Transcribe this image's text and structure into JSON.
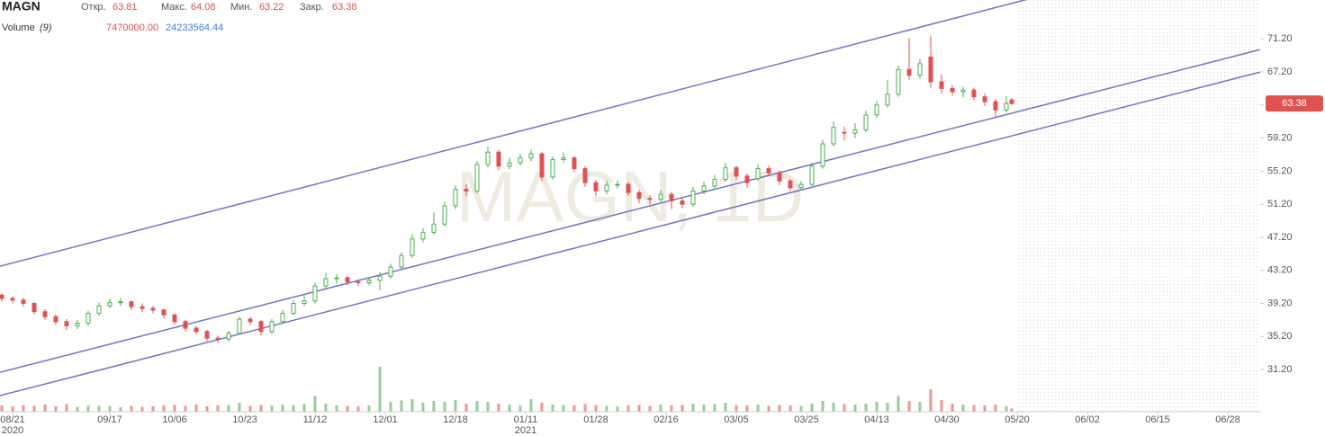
{
  "chart_data": {
    "type": "candlestick",
    "header": {
      "symbol": "MAGN",
      "open_label": "Откр.",
      "high_label": "Макс.",
      "low_label": "Мин.",
      "close_label": "Закр.",
      "volume_name": "Volume",
      "volume_period": "(9)",
      "volume_value": "7470000.00",
      "volume_ma": "24233564.44"
    },
    "watermark": "MAGN, 1D",
    "x": [
      0,
      2,
      4,
      6,
      8,
      10,
      12,
      14,
      16,
      18,
      20,
      22,
      24,
      26,
      28,
      30,
      32,
      34,
      36,
      38,
      40,
      42,
      44,
      46,
      48,
      50,
      52,
      54,
      56,
      58,
      60,
      62,
      64,
      66,
      68,
      70,
      72,
      74,
      76,
      78,
      80,
      82,
      84,
      86,
      88,
      90,
      92,
      94,
      96,
      98,
      100,
      102,
      104,
      106,
      108,
      110,
      112,
      114,
      116,
      118,
      120,
      122,
      124,
      126,
      128,
      130,
      132,
      134,
      136,
      138,
      140,
      142,
      144,
      146,
      148,
      150,
      152,
      154,
      156,
      158,
      160,
      162,
      164,
      166,
      168,
      170,
      172,
      174,
      176,
      178,
      180,
      182,
      184,
      186,
      187
    ],
    "open": [
      40.2,
      39.8,
      39.6,
      39.2,
      38.2,
      37.6,
      37.0,
      36.5,
      36.8,
      38.0,
      38.9,
      39.3,
      39.4,
      38.8,
      38.6,
      38.4,
      37.8,
      37.0,
      36.2,
      35.8,
      35.0,
      34.9,
      35.6,
      37.3,
      37.0,
      35.8,
      37.0,
      38.0,
      39.2,
      39.5,
      41.3,
      42.2,
      42.3,
      41.8,
      41.7,
      42.0,
      42.5,
      43.6,
      45.0,
      47.0,
      47.8,
      48.8,
      51.0,
      53.0,
      52.8,
      56.0,
      57.5,
      55.8,
      56.2,
      56.8,
      57.3,
      54.5,
      56.6,
      56.8,
      55.5,
      53.8,
      52.8,
      53.5,
      53.6,
      52.6,
      51.9,
      51.8,
      52.4,
      51.6,
      51.2,
      52.8,
      53.4,
      54.2,
      55.6,
      54.6,
      54.3,
      55.5,
      55.0,
      54.0,
      53.2,
      53.6,
      55.8,
      58.5,
      59.9,
      59.8,
      60.2,
      62.0,
      63.2,
      64.5,
      67.5,
      66.8,
      69.0,
      66.0,
      65.2,
      64.8,
      65.0,
      64.2,
      63.6,
      62.6,
      63.81
    ],
    "high": [
      40.4,
      40.1,
      39.9,
      39.4,
      38.5,
      37.9,
      37.3,
      37.2,
      38.3,
      39.3,
      39.8,
      39.9,
      39.6,
      39.2,
      38.9,
      38.6,
      38.0,
      37.2,
      36.5,
      36.0,
      35.3,
      35.9,
      37.6,
      37.6,
      37.2,
      37.3,
      38.4,
      39.6,
      40.3,
      41.7,
      42.9,
      42.7,
      42.5,
      42.1,
      42.4,
      43.0,
      44.0,
      45.4,
      47.6,
      48.3,
      50.2,
      51.5,
      53.5,
      53.6,
      56.4,
      58.2,
      57.8,
      56.8,
      57.3,
      57.8,
      57.5,
      57.0,
      57.5,
      57.0,
      55.8,
      54.1,
      54.0,
      54.1,
      53.9,
      52.9,
      52.3,
      52.9,
      52.7,
      52.0,
      53.3,
      53.9,
      54.8,
      56.2,
      55.9,
      54.9,
      56.0,
      55.9,
      55.3,
      54.3,
      54.0,
      56.2,
      59.0,
      61.2,
      60.6,
      61.0,
      62.5,
      63.7,
      66.2,
      68.0,
      71.3,
      68.8,
      71.6,
      66.9,
      65.6,
      65.4,
      65.3,
      64.6,
      63.9,
      64.3,
      64.08
    ],
    "low": [
      39.4,
      39.2,
      38.8,
      37.9,
      37.2,
      36.6,
      36.0,
      36.1,
      36.5,
      37.7,
      38.6,
      38.9,
      38.4,
      38.2,
      38.0,
      37.4,
      36.6,
      35.8,
      35.4,
      34.6,
      34.4,
      34.6,
      35.4,
      36.6,
      35.3,
      35.5,
      36.7,
      37.8,
      38.9,
      39.2,
      41.0,
      41.6,
      41.4,
      41.3,
      41.4,
      40.8,
      42.2,
      43.3,
      44.7,
      46.6,
      47.5,
      48.5,
      50.6,
      52.2,
      52.5,
      55.7,
      55.3,
      55.4,
      55.9,
      56.4,
      54.0,
      54.2,
      56.2,
      55.1,
      53.3,
      52.2,
      52.4,
      53.1,
      52.2,
      51.3,
      51.2,
      51.4,
      50.6,
      50.7,
      50.9,
      52.4,
      53.0,
      53.9,
      54.1,
      53.2,
      54.0,
      54.6,
      53.5,
      52.8,
      52.9,
      53.4,
      55.5,
      58.2,
      58.9,
      59.2,
      59.9,
      61.6,
      62.9,
      64.2,
      66.2,
      66.4,
      65.3,
      64.6,
      64.3,
      64.1,
      63.8,
      63.1,
      61.7,
      62.3,
      63.22
    ],
    "close": [
      39.8,
      39.6,
      39.2,
      38.2,
      37.6,
      37.0,
      36.5,
      36.8,
      38.0,
      38.9,
      39.3,
      39.4,
      38.8,
      38.6,
      38.4,
      37.8,
      37.0,
      36.2,
      35.8,
      35.0,
      34.9,
      35.6,
      37.3,
      37.0,
      35.8,
      37.0,
      38.0,
      39.2,
      39.5,
      41.3,
      42.2,
      42.3,
      41.8,
      41.7,
      42.0,
      42.5,
      43.6,
      45.0,
      47.0,
      47.8,
      48.8,
      51.0,
      53.0,
      52.8,
      56.0,
      57.5,
      55.8,
      56.2,
      56.8,
      57.3,
      54.5,
      56.6,
      56.8,
      55.5,
      53.8,
      52.8,
      53.5,
      53.6,
      52.6,
      51.9,
      51.8,
      52.4,
      51.6,
      51.2,
      52.8,
      53.4,
      54.2,
      55.6,
      54.6,
      53.8,
      55.5,
      55.0,
      54.0,
      53.2,
      53.6,
      55.8,
      58.5,
      60.5,
      59.8,
      60.2,
      62.0,
      63.2,
      64.5,
      67.5,
      66.8,
      68.2,
      66.0,
      65.2,
      64.8,
      65.0,
      64.2,
      63.6,
      62.6,
      63.4,
      63.38
    ],
    "volume": [
      14000000,
      12000000,
      15000000,
      13000000,
      16000000,
      12000000,
      17000000,
      11000000,
      14000000,
      13000000,
      12000000,
      10000000,
      13000000,
      11000000,
      12000000,
      14000000,
      15000000,
      13000000,
      16000000,
      12000000,
      14000000,
      15000000,
      20000000,
      13000000,
      15000000,
      14000000,
      16000000,
      15000000,
      17000000,
      35000000,
      18000000,
      14000000,
      13000000,
      12000000,
      14000000,
      100000000,
      22000000,
      25000000,
      28000000,
      20000000,
      24000000,
      22000000,
      26000000,
      18000000,
      24000000,
      22000000,
      18000000,
      16000000,
      14000000,
      28000000,
      20000000,
      16000000,
      15000000,
      14000000,
      17000000,
      15000000,
      13000000,
      12000000,
      14000000,
      15000000,
      13000000,
      16000000,
      14000000,
      15000000,
      18000000,
      16000000,
      17000000,
      20000000,
      15000000,
      14000000,
      16000000,
      13000000,
      15000000,
      14000000,
      13000000,
      18000000,
      24000000,
      20000000,
      17000000,
      16000000,
      18000000,
      22000000,
      20000000,
      35000000,
      24000000,
      22000000,
      50000000,
      26000000,
      18000000,
      16000000,
      15000000,
      14000000,
      16000000,
      12000000,
      7470000
    ],
    "up_color": "#4caf50",
    "down_color": "#e0524f",
    "line_color": "#7474c4",
    "xlim": [
      -0.33,
      233
    ],
    "ylim": [
      26.1,
      75.9
    ],
    "vlim": [
      0,
      100000000
    ],
    "yticks": [
      {
        "value": 31.2,
        "label": "31.20"
      },
      {
        "value": 35.2,
        "label": "35.20"
      },
      {
        "value": 39.2,
        "label": "39.20"
      },
      {
        "value": 43.2,
        "label": "43.20"
      },
      {
        "value": 47.2,
        "label": "47.20"
      },
      {
        "value": 51.2,
        "label": "51.20"
      },
      {
        "value": 55.2,
        "label": "55.20"
      },
      {
        "value": 59.2,
        "label": "59.20"
      },
      {
        "value": 63.2,
        "label": "63.20"
      },
      {
        "value": 67.2,
        "label": "67.20"
      },
      {
        "value": 71.2,
        "label": "71.20"
      }
    ],
    "xticks": [
      {
        "value": 2,
        "label": "08/21"
      },
      {
        "value": 20,
        "label": "09/17"
      },
      {
        "value": 32,
        "label": "10/06"
      },
      {
        "value": 45,
        "label": "10/23"
      },
      {
        "value": 58,
        "label": "11/12"
      },
      {
        "value": 71,
        "label": "12/01"
      },
      {
        "value": 84,
        "label": "12/18"
      },
      {
        "value": 97,
        "label": "01/11"
      },
      {
        "value": 110,
        "label": "01/28"
      },
      {
        "value": 123,
        "label": "02/16"
      },
      {
        "value": 136,
        "label": "03/05"
      },
      {
        "value": 149,
        "label": "03/25"
      },
      {
        "value": 162,
        "label": "04/13"
      },
      {
        "value": 175,
        "label": "04/30"
      },
      {
        "value": 188,
        "label": "05/20"
      },
      {
        "value": 201,
        "label": "06/02"
      },
      {
        "value": 214,
        "label": "06/15"
      },
      {
        "value": 227,
        "label": "06/28"
      }
    ],
    "year_labels": [
      {
        "value": 2,
        "label": "2020"
      },
      {
        "value": 97,
        "label": "2021"
      }
    ],
    "channel_lines": [
      {
        "x": [
          -0.33,
          233
        ],
        "y": [
          43.7,
          83.3
        ]
      },
      {
        "x": [
          -0.33,
          233
        ],
        "y": [
          30.87,
          69.9
        ]
      },
      {
        "x": [
          -0.33,
          233
        ],
        "y": [
          28.05,
          67.18
        ]
      }
    ]
  }
}
